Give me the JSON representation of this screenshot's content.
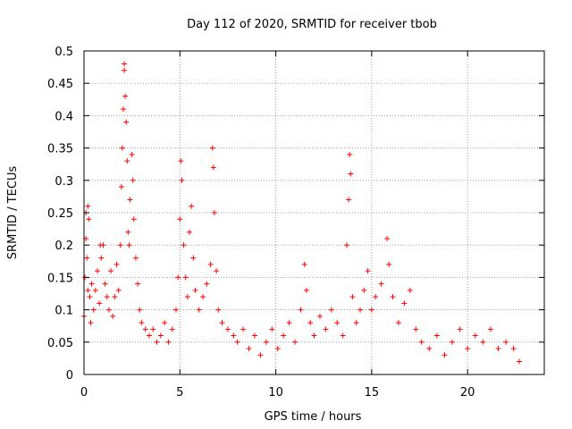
{
  "chart_data": {
    "type": "scatter",
    "title": "Day 112 of 2020, SRMTID for receiver tbob",
    "xlabel": "GPS time / hours",
    "ylabel": "SRMTID / TECUs",
    "xlim": [
      0,
      24
    ],
    "ylim": [
      0,
      0.5
    ],
    "xticks": [
      0,
      5,
      10,
      15,
      20
    ],
    "yticks": [
      0,
      0.05,
      0.1,
      0.15,
      0.2,
      0.25,
      0.3,
      0.35,
      0.4,
      0.45,
      0.5
    ],
    "xtick_labels": [
      "0",
      "5",
      "10",
      "15",
      "20"
    ],
    "ytick_labels": [
      "0",
      "0.05",
      "0.1",
      "0.15",
      "0.2",
      "0.25",
      "0.3",
      "0.35",
      "0.4",
      "0.45",
      "0.5"
    ],
    "grid": true,
    "marker": "+",
    "series": [
      {
        "name": "SRMTID",
        "color": "#ff0000",
        "points": [
          [
            0.0,
            0.09
          ],
          [
            0.05,
            0.15
          ],
          [
            0.1,
            0.21
          ],
          [
            0.1,
            0.25
          ],
          [
            0.15,
            0.18
          ],
          [
            0.2,
            0.26
          ],
          [
            0.2,
            0.13
          ],
          [
            0.25,
            0.24
          ],
          [
            0.3,
            0.12
          ],
          [
            0.35,
            0.08
          ],
          [
            0.4,
            0.14
          ],
          [
            0.5,
            0.1
          ],
          [
            0.6,
            0.13
          ],
          [
            0.7,
            0.16
          ],
          [
            0.8,
            0.11
          ],
          [
            0.85,
            0.2
          ],
          [
            0.9,
            0.18
          ],
          [
            1.0,
            0.2
          ],
          [
            1.1,
            0.14
          ],
          [
            1.2,
            0.12
          ],
          [
            1.3,
            0.1
          ],
          [
            1.4,
            0.16
          ],
          [
            1.5,
            0.09
          ],
          [
            1.6,
            0.12
          ],
          [
            1.7,
            0.17
          ],
          [
            1.8,
            0.13
          ],
          [
            1.9,
            0.2
          ],
          [
            1.95,
            0.29
          ],
          [
            2.0,
            0.35
          ],
          [
            2.05,
            0.41
          ],
          [
            2.1,
            0.47
          ],
          [
            2.1,
            0.48
          ],
          [
            2.15,
            0.43
          ],
          [
            2.2,
            0.39
          ],
          [
            2.25,
            0.33
          ],
          [
            2.3,
            0.22
          ],
          [
            2.35,
            0.2
          ],
          [
            2.4,
            0.27
          ],
          [
            2.5,
            0.34
          ],
          [
            2.55,
            0.3
          ],
          [
            2.6,
            0.24
          ],
          [
            2.7,
            0.18
          ],
          [
            2.8,
            0.14
          ],
          [
            2.9,
            0.1
          ],
          [
            3.0,
            0.08
          ],
          [
            3.2,
            0.07
          ],
          [
            3.4,
            0.06
          ],
          [
            3.6,
            0.07
          ],
          [
            3.8,
            0.05
          ],
          [
            4.0,
            0.06
          ],
          [
            4.2,
            0.08
          ],
          [
            4.4,
            0.05
          ],
          [
            4.6,
            0.07
          ],
          [
            4.8,
            0.1
          ],
          [
            4.9,
            0.15
          ],
          [
            5.0,
            0.24
          ],
          [
            5.05,
            0.33
          ],
          [
            5.1,
            0.3
          ],
          [
            5.2,
            0.2
          ],
          [
            5.3,
            0.15
          ],
          [
            5.4,
            0.12
          ],
          [
            5.5,
            0.22
          ],
          [
            5.6,
            0.26
          ],
          [
            5.7,
            0.18
          ],
          [
            5.8,
            0.13
          ],
          [
            6.0,
            0.1
          ],
          [
            6.2,
            0.12
          ],
          [
            6.4,
            0.14
          ],
          [
            6.6,
            0.17
          ],
          [
            6.7,
            0.35
          ],
          [
            6.75,
            0.32
          ],
          [
            6.8,
            0.25
          ],
          [
            6.9,
            0.16
          ],
          [
            7.0,
            0.1
          ],
          [
            7.2,
            0.08
          ],
          [
            7.5,
            0.07
          ],
          [
            7.8,
            0.06
          ],
          [
            8.0,
            0.05
          ],
          [
            8.3,
            0.07
          ],
          [
            8.6,
            0.04
          ],
          [
            8.9,
            0.06
          ],
          [
            9.2,
            0.03
          ],
          [
            9.5,
            0.05
          ],
          [
            9.8,
            0.07
          ],
          [
            10.1,
            0.04
          ],
          [
            10.4,
            0.06
          ],
          [
            10.7,
            0.08
          ],
          [
            11.0,
            0.05
          ],
          [
            11.3,
            0.1
          ],
          [
            11.5,
            0.17
          ],
          [
            11.6,
            0.13
          ],
          [
            11.8,
            0.08
          ],
          [
            12.0,
            0.06
          ],
          [
            12.3,
            0.09
          ],
          [
            12.6,
            0.07
          ],
          [
            12.9,
            0.1
          ],
          [
            13.2,
            0.08
          ],
          [
            13.5,
            0.06
          ],
          [
            13.7,
            0.2
          ],
          [
            13.8,
            0.27
          ],
          [
            13.85,
            0.34
          ],
          [
            13.9,
            0.31
          ],
          [
            14.0,
            0.12
          ],
          [
            14.2,
            0.08
          ],
          [
            14.4,
            0.1
          ],
          [
            14.6,
            0.13
          ],
          [
            14.8,
            0.16
          ],
          [
            15.0,
            0.1
          ],
          [
            15.2,
            0.12
          ],
          [
            15.5,
            0.14
          ],
          [
            15.8,
            0.21
          ],
          [
            15.9,
            0.17
          ],
          [
            16.1,
            0.12
          ],
          [
            16.4,
            0.08
          ],
          [
            16.7,
            0.11
          ],
          [
            17.0,
            0.13
          ],
          [
            17.3,
            0.07
          ],
          [
            17.6,
            0.05
          ],
          [
            18.0,
            0.04
          ],
          [
            18.4,
            0.06
          ],
          [
            18.8,
            0.03
          ],
          [
            19.2,
            0.05
          ],
          [
            19.6,
            0.07
          ],
          [
            20.0,
            0.04
          ],
          [
            20.4,
            0.06
          ],
          [
            20.8,
            0.05
          ],
          [
            21.2,
            0.07
          ],
          [
            21.6,
            0.04
          ],
          [
            22.0,
            0.05
          ],
          [
            22.4,
            0.04
          ],
          [
            22.7,
            0.02
          ]
        ]
      }
    ]
  }
}
